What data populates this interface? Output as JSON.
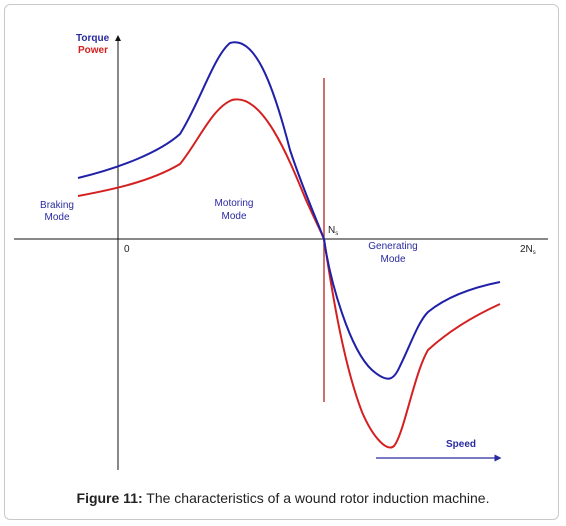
{
  "figure": {
    "caption_label": "Figure 11:",
    "caption_text": " The characteristics of a wound rotor induction machine."
  },
  "labels": {
    "y_axis_torque": "Torque",
    "y_axis_power": "Power",
    "origin": "0",
    "sync_speed": "N",
    "sync_speed_sub": "s",
    "double_sync_speed": "2N",
    "double_sync_speed_sub": "s",
    "braking_line1": "Braking",
    "braking_line2": "Mode",
    "motoring_line1": "Motoring",
    "motoring_line2": "Mode",
    "generating_line1": "Generating",
    "generating_line2": "Mode",
    "speed_arrow": "Speed"
  },
  "colors": {
    "torque_curve": "#2020a8",
    "power_curve": "#d42020",
    "sync_line": "#c03030",
    "axis": "#111111"
  }
}
